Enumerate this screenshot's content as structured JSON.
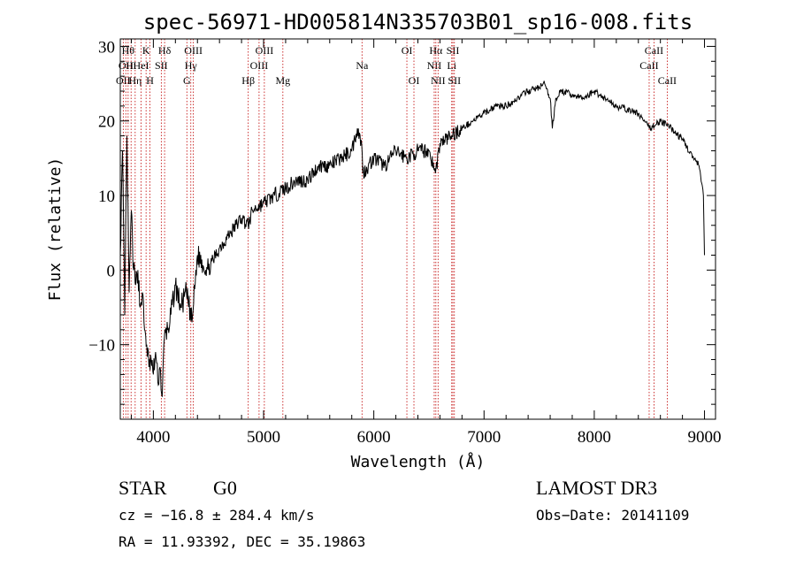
{
  "chart_data": {
    "type": "line",
    "title": "spec-56971-HD005814N335703B01_sp16-008.fits",
    "xlabel": "Wavelength (Å)",
    "ylabel": "Flux (relative)",
    "xlim": [
      3700,
      9100
    ],
    "ylim": [
      -20,
      31
    ],
    "x_ticks": [
      4000,
      5000,
      6000,
      7000,
      8000,
      9000
    ],
    "y_ticks": [
      -10,
      0,
      10,
      20,
      30
    ],
    "x_tick_labels": [
      "4000",
      "5000",
      "6000",
      "7000",
      "8000",
      "9000"
    ],
    "y_tick_labels": [
      "−10",
      "0",
      "10",
      "20",
      "30"
    ],
    "grid": false,
    "series": [
      {
        "name": "flux",
        "x": [
          3700,
          3720,
          3740,
          3760,
          3780,
          3800,
          3820,
          3840,
          3860,
          3880,
          3900,
          3920,
          3940,
          3960,
          3980,
          4000,
          4020,
          4040,
          4060,
          4080,
          4100,
          4150,
          4200,
          4250,
          4300,
          4350,
          4400,
          4500,
          4600,
          4700,
          4800,
          4860,
          4900,
          5000,
          5100,
          5200,
          5300,
          5400,
          5500,
          5600,
          5700,
          5800,
          5850,
          5890,
          5900,
          5950,
          6000,
          6100,
          6200,
          6300,
          6400,
          6500,
          6560,
          6600,
          6700,
          6800,
          6900,
          7000,
          7100,
          7200,
          7300,
          7400,
          7500,
          7550,
          7600,
          7620,
          7650,
          7700,
          7800,
          7900,
          8000,
          8100,
          8200,
          8300,
          8400,
          8500,
          8600,
          8700,
          8800,
          8900,
          8950,
          8990,
          9000
        ],
        "y": [
          2,
          16,
          -6,
          18,
          -3,
          8,
          0,
          -2,
          0,
          -5,
          -3,
          -8,
          -10,
          -13,
          -12,
          -14,
          -11,
          -15,
          -13,
          -17,
          -9,
          -7,
          -2,
          -5,
          -3,
          -7,
          2,
          0,
          3,
          5,
          7,
          6,
          8,
          9,
          10,
          11,
          12,
          12,
          14,
          14,
          15,
          16,
          19,
          17,
          13,
          14,
          15,
          14,
          16,
          15,
          16,
          16,
          13,
          17,
          18,
          19,
          20,
          21,
          22,
          22,
          23,
          24,
          24.5,
          25,
          23,
          19,
          23,
          24,
          23.5,
          23,
          24,
          23,
          22,
          21.5,
          21,
          19,
          20,
          19,
          17.5,
          15,
          14,
          10,
          2
        ]
      }
    ],
    "lines": [
      {
        "wl": 3727,
        "label": "OII",
        "row": 2
      },
      {
        "wl": 3750,
        "label": "OII",
        "row": 1
      },
      {
        "wl": 3771,
        "label": "Hθ",
        "row": 0
      },
      {
        "wl": 3798,
        "label": "Hι",
        "row": 1
      },
      {
        "wl": 3835,
        "label": "Hη",
        "row": 2
      },
      {
        "wl": 3889,
        "label": "HeI",
        "row": 1
      },
      {
        "wl": 3934,
        "label": "K",
        "row": 0
      },
      {
        "wl": 3969,
        "label": "H",
        "row": 2
      },
      {
        "wl": 4072,
        "label": "SII",
        "row": 1
      },
      {
        "wl": 4102,
        "label": "Hδ",
        "row": 0
      },
      {
        "wl": 4304,
        "label": "G",
        "row": 2
      },
      {
        "wl": 4340,
        "label": "Hγ",
        "row": 1
      },
      {
        "wl": 4363,
        "label": "OIII",
        "row": 0
      },
      {
        "wl": 4861,
        "label": "Hβ",
        "row": 2
      },
      {
        "wl": 4959,
        "label": "OIII",
        "row": 1
      },
      {
        "wl": 5007,
        "label": "OIII",
        "row": 0
      },
      {
        "wl": 5175,
        "label": "Mg",
        "row": 2
      },
      {
        "wl": 5893,
        "label": "Na",
        "row": 1
      },
      {
        "wl": 6300,
        "label": "OI",
        "row": 0
      },
      {
        "wl": 6364,
        "label": "OI",
        "row": 2
      },
      {
        "wl": 6548,
        "label": "NII",
        "row": 1
      },
      {
        "wl": 6563,
        "label": "Hα",
        "row": 0
      },
      {
        "wl": 6583,
        "label": "NII",
        "row": 2
      },
      {
        "wl": 6707,
        "label": "Li",
        "row": 1
      },
      {
        "wl": 6717,
        "label": "SII",
        "row": 0
      },
      {
        "wl": 6731,
        "label": "SII",
        "row": 2
      },
      {
        "wl": 8498,
        "label": "CaII",
        "row": 1
      },
      {
        "wl": 8542,
        "label": "CaII",
        "row": 0
      },
      {
        "wl": 8662,
        "label": "CaII",
        "row": 2
      }
    ]
  },
  "info": {
    "object_class": "STAR",
    "subclass": "G0",
    "survey": "LAMOST DR3",
    "cz": "cz = −16.8 ± 284.4 km/s",
    "obs_date": "Obs−Date: 20141109",
    "coords": "RA =  11.93392, DEC =  35.19863"
  },
  "colors": {
    "spectrum": "#000000",
    "line_marker": "#c00000",
    "axis": "#000000"
  }
}
